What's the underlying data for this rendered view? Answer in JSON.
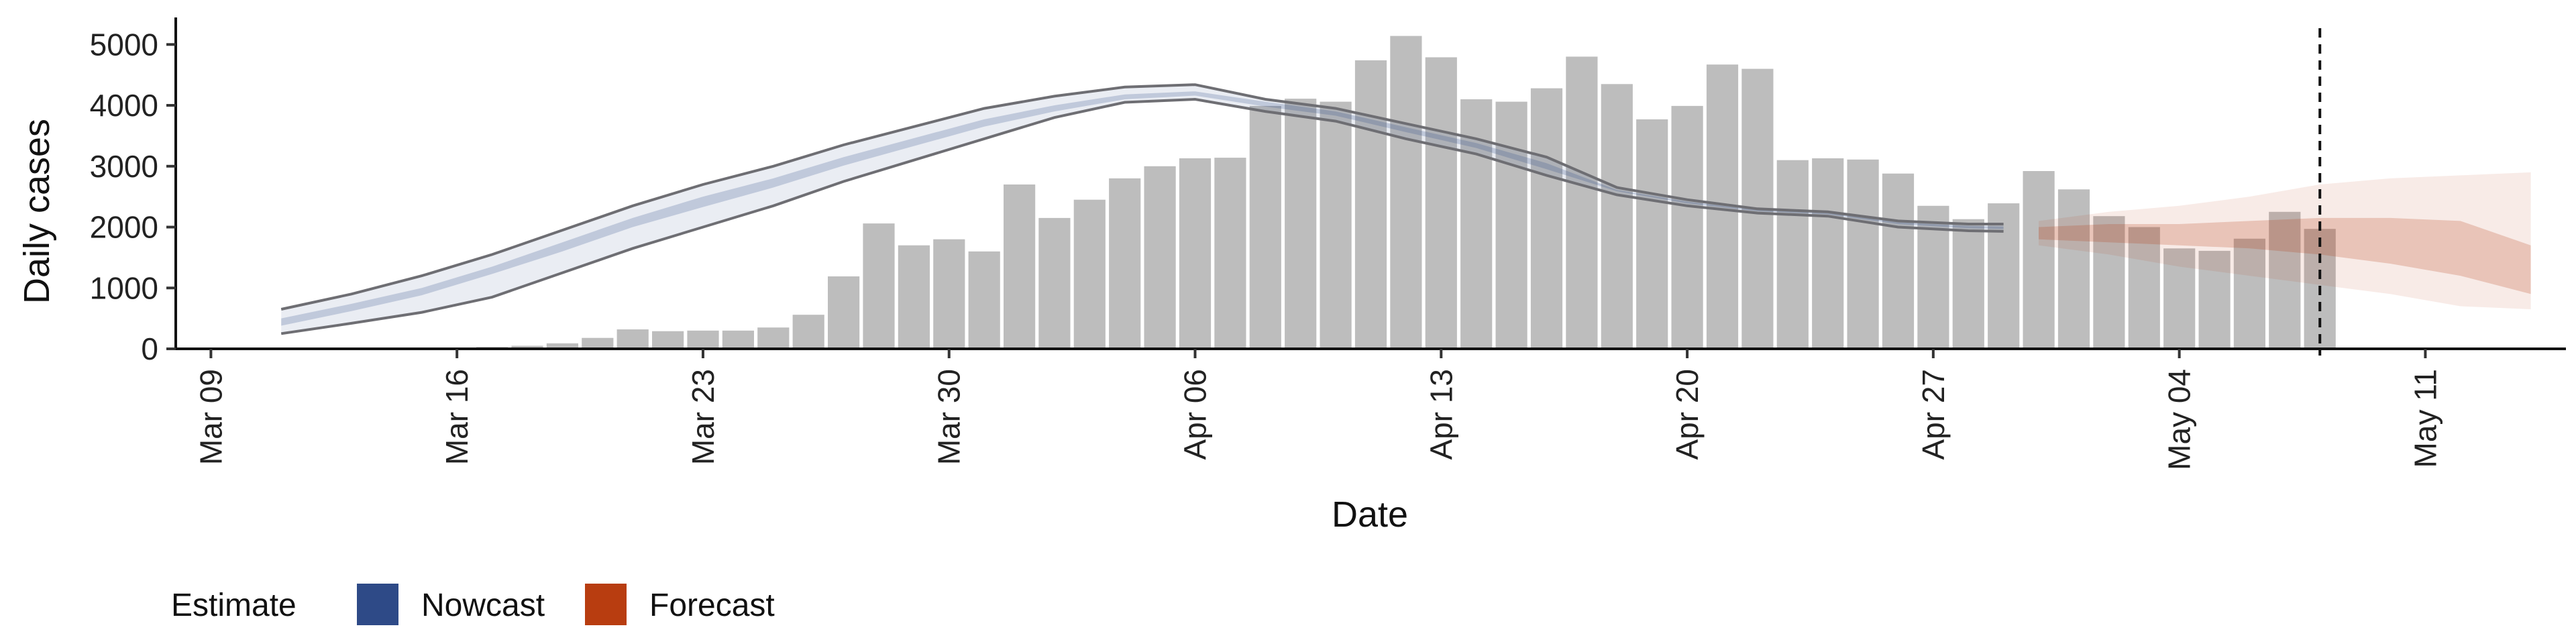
{
  "chart_data": {
    "type": "bar",
    "title": "",
    "xlabel": "Date",
    "ylabel": "Daily cases",
    "ylim": [
      0,
      5400
    ],
    "yticks": [
      0,
      1000,
      2000,
      3000,
      4000,
      5000
    ],
    "x_range": [
      "2020-03-08",
      "2020-05-15"
    ],
    "x_ticks": [
      "Mar 09",
      "Mar 16",
      "Mar 23",
      "Mar 30",
      "Apr 06",
      "Apr 13",
      "Apr 20",
      "Apr 27",
      "May 04",
      "May 11"
    ],
    "x_tick_dates": [
      "2020-03-09",
      "2020-03-16",
      "2020-03-23",
      "2020-03-30",
      "2020-04-06",
      "2020-04-13",
      "2020-04-20",
      "2020-04-27",
      "2020-05-04",
      "2020-05-11"
    ],
    "grid": false,
    "legend_position": "bottom-left",
    "vline": "2020-05-08",
    "bars": {
      "name": "Daily cases",
      "color": "#bdbdbd",
      "start_date": "2020-03-16",
      "values": [
        10,
        30,
        50,
        90,
        180,
        320,
        290,
        300,
        300,
        350,
        560,
        1190,
        2060,
        1700,
        1800,
        1600,
        2700,
        2150,
        2450,
        2800,
        3000,
        3130,
        3140,
        3990,
        4110,
        4060,
        4740,
        5140,
        4790,
        4100,
        4060,
        4280,
        4800,
        4350,
        3770,
        3990,
        4670,
        4600,
        3100,
        3130,
        3110,
        2880,
        2350,
        2130,
        2390,
        2920,
        2620,
        2180,
        2000,
        1650,
        1610,
        1810,
        2250,
        1970
      ]
    },
    "series": [
      {
        "name": "Nowcast",
        "color": "#2e4a87",
        "dates": [
          "2020-03-11",
          "2020-03-13",
          "2020-03-15",
          "2020-03-17",
          "2020-03-19",
          "2020-03-21",
          "2020-03-23",
          "2020-03-25",
          "2020-03-27",
          "2020-03-29",
          "2020-03-31",
          "2020-04-02",
          "2020-04-04",
          "2020-04-06",
          "2020-04-08",
          "2020-04-10",
          "2020-04-12",
          "2020-04-14",
          "2020-04-16",
          "2020-04-18",
          "2020-04-20",
          "2020-04-22",
          "2020-04-24",
          "2020-04-26",
          "2020-04-28",
          "2020-04-29"
        ],
        "upper90": [
          650,
          900,
          1200,
          1550,
          1950,
          2350,
          2700,
          3000,
          3350,
          3650,
          3950,
          4150,
          4300,
          4340,
          4100,
          3950,
          3700,
          3450,
          3150,
          2650,
          2450,
          2300,
          2250,
          2100,
          2050,
          2050
        ],
        "upper50": [
          500,
          740,
          1000,
          1350,
          1750,
          2150,
          2500,
          2800,
          3150,
          3460,
          3770,
          4000,
          4180,
          4230,
          4060,
          3900,
          3640,
          3380,
          3050,
          2610,
          2420,
          2280,
          2230,
          2080,
          2020,
          2010
        ],
        "lower50": [
          380,
          620,
          880,
          1230,
          1600,
          2000,
          2330,
          2650,
          3010,
          3330,
          3650,
          3900,
          4100,
          4160,
          3980,
          3830,
          3560,
          3300,
          2950,
          2590,
          2390,
          2260,
          2210,
          2050,
          1980,
          1970
        ],
        "lower90": [
          250,
          420,
          600,
          850,
          1250,
          1650,
          2000,
          2350,
          2750,
          3100,
          3450,
          3800,
          4050,
          4100,
          3900,
          3740,
          3450,
          3200,
          2850,
          2530,
          2350,
          2230,
          2180,
          2000,
          1940,
          1930
        ]
      },
      {
        "name": "Forecast",
        "color": "#b83d10",
        "dates": [
          "2020-04-30",
          "2020-05-02",
          "2020-05-04",
          "2020-05-06",
          "2020-05-08",
          "2020-05-10",
          "2020-05-12",
          "2020-05-14"
        ],
        "upper90": [
          2100,
          2250,
          2350,
          2500,
          2700,
          2800,
          2850,
          2900
        ],
        "upper50": [
          2000,
          2050,
          2050,
          2100,
          2150,
          2150,
          2100,
          1700
        ],
        "lower50": [
          1800,
          1750,
          1700,
          1650,
          1550,
          1400,
          1200,
          900
        ],
        "lower90": [
          1700,
          1550,
          1350,
          1200,
          1050,
          900,
          700,
          650
        ]
      }
    ],
    "legend": {
      "title": "Estimate",
      "entries": [
        {
          "label": "Nowcast",
          "color": "#2e4a87"
        },
        {
          "label": "Forecast",
          "color": "#b83d10"
        }
      ]
    }
  }
}
